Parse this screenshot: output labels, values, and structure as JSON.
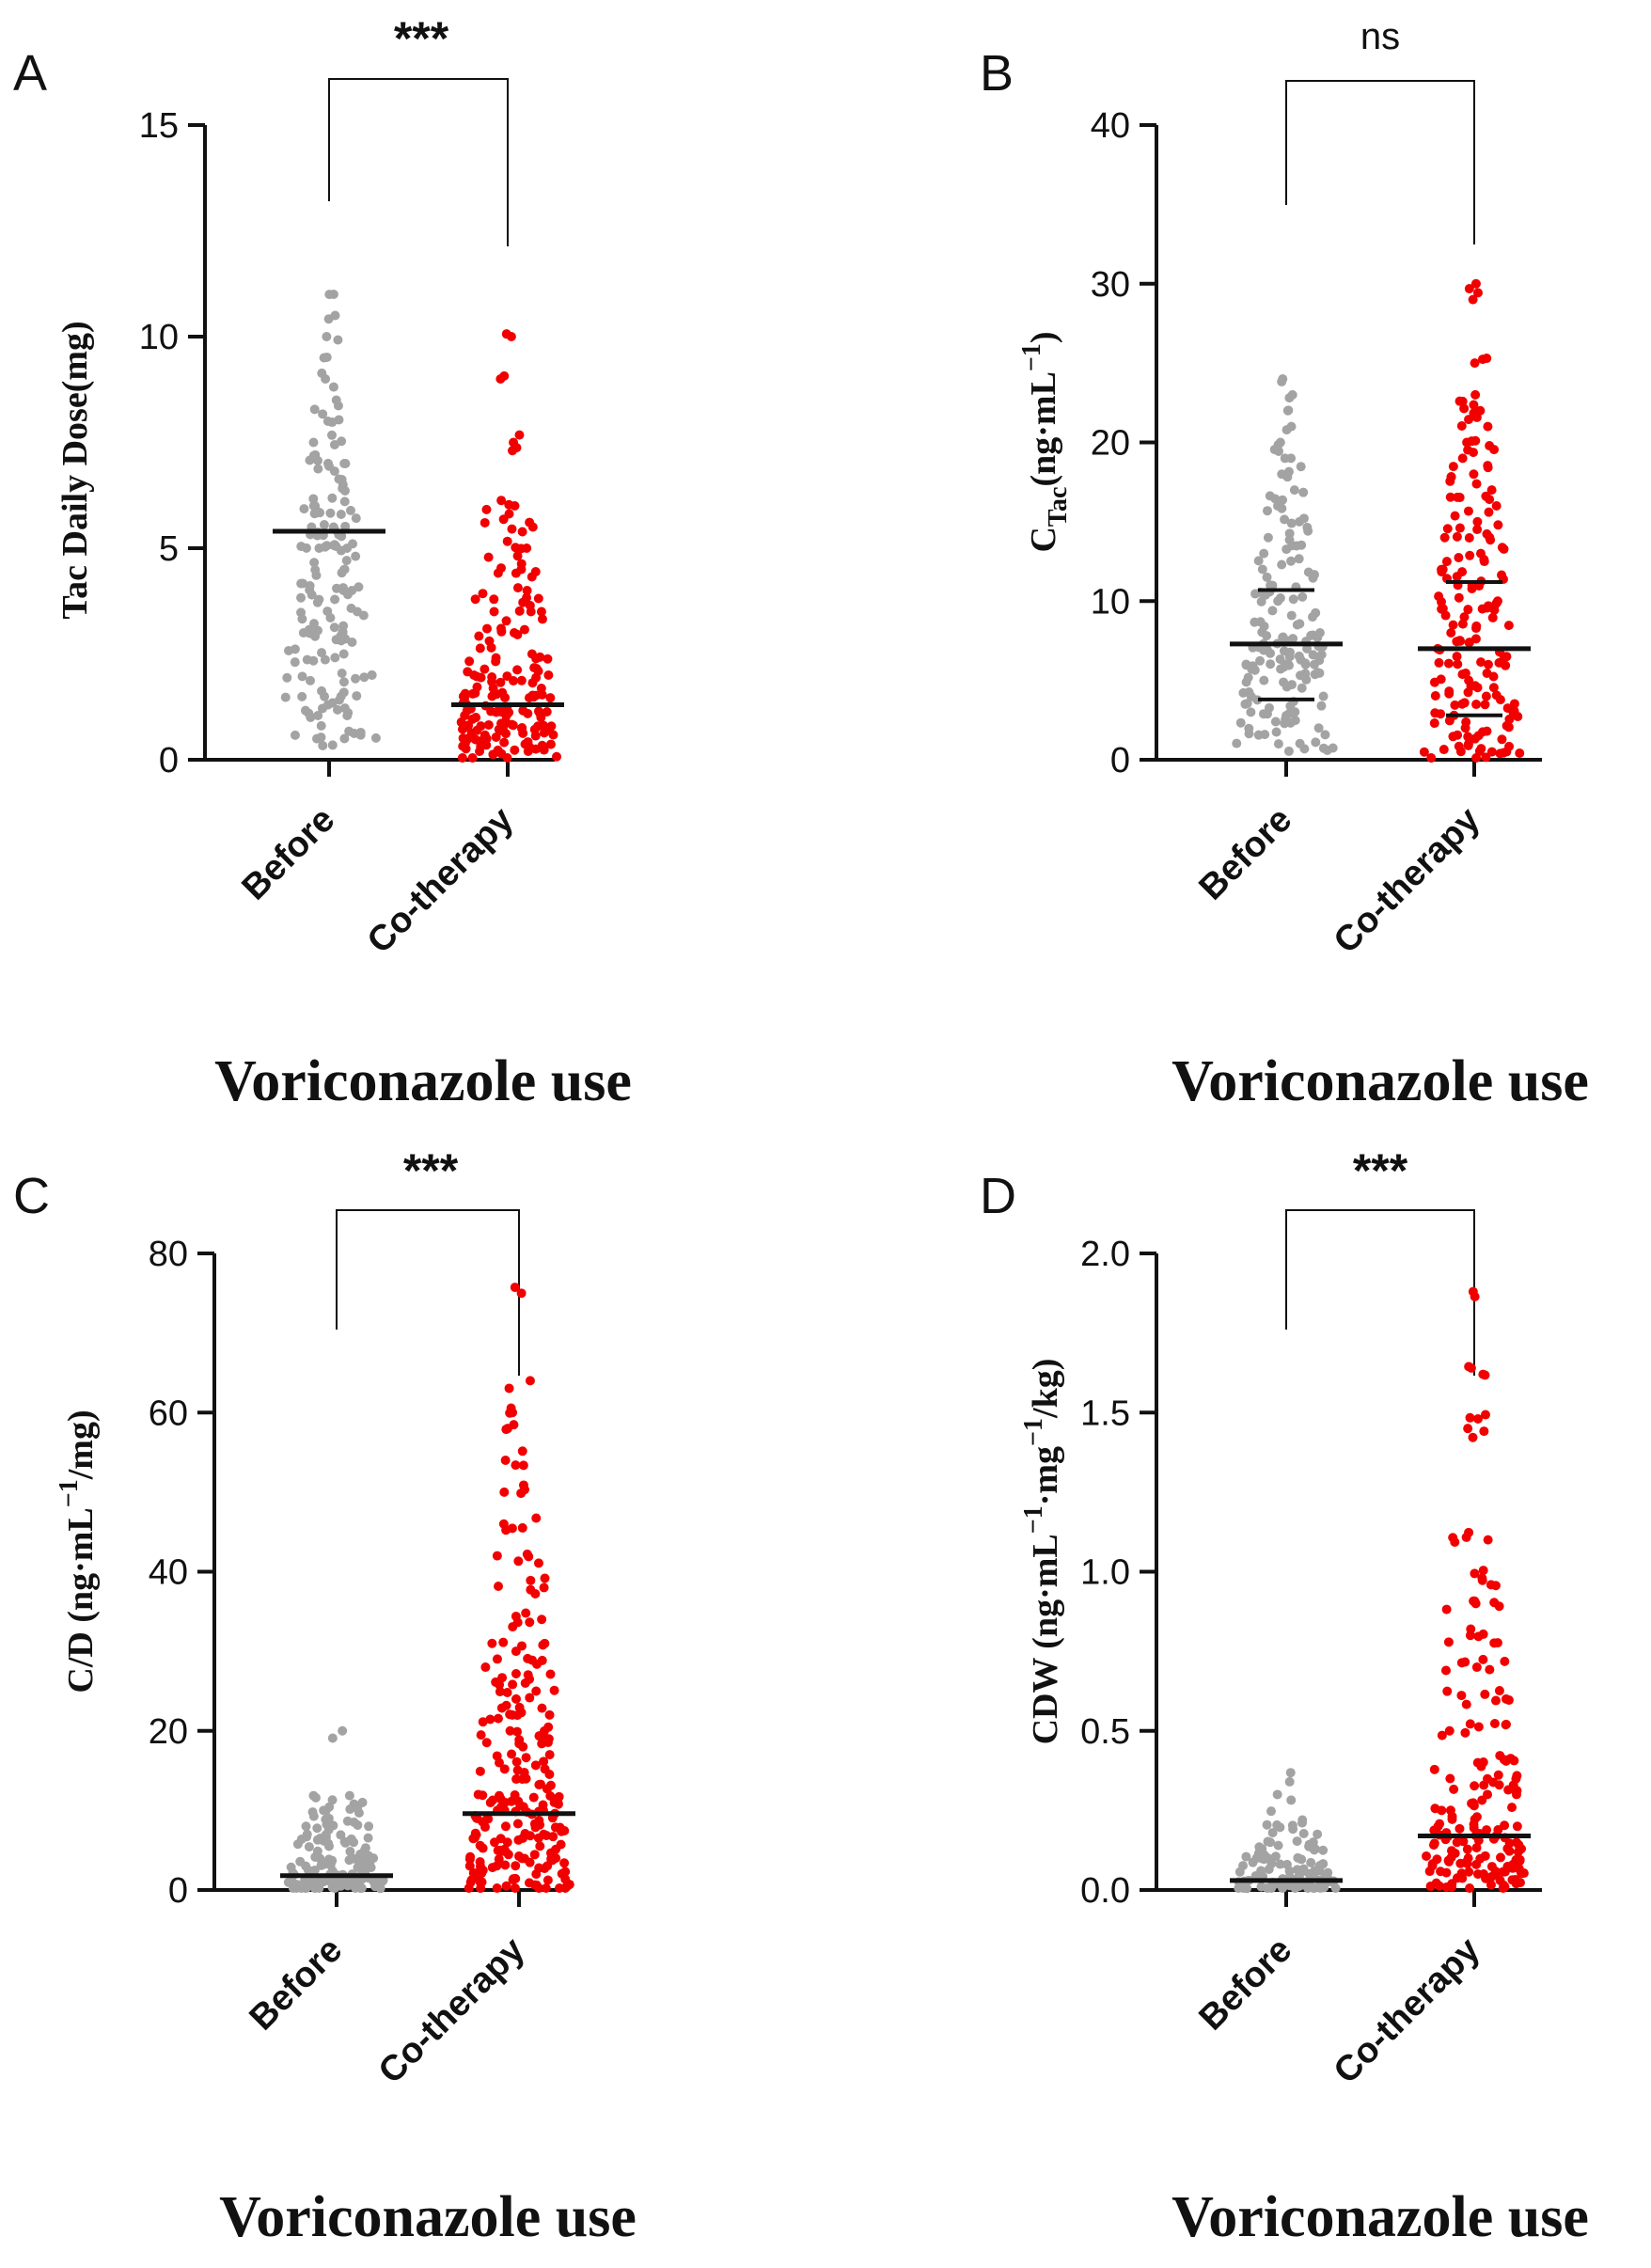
{
  "chart_data": [
    {
      "panel": "A",
      "type": "scatter",
      "categories": [
        "Before",
        "Co-therapy"
      ],
      "ylabel": "Tac Daily Dose(mg)",
      "xlabel": "Voriconazole use",
      "ylim": [
        0,
        15
      ],
      "yticks": [
        0,
        5,
        10,
        15
      ],
      "ytick_labels": [
        "0",
        "5",
        "10",
        "15"
      ],
      "significance": "***",
      "series": [
        {
          "values": [
            0.5,
            1,
            1.5,
            2,
            2.5,
            3,
            3,
            3.5,
            4,
            4,
            4.5,
            5,
            5,
            5.5,
            5.5,
            6,
            6,
            6.5,
            7,
            7,
            7.5,
            8,
            8.5,
            9,
            9.5,
            10,
            10.5,
            11
          ],
          "mean": 5.4
        },
        {
          "values": [
            0.2,
            0.3,
            0.5,
            0.5,
            0.75,
            1,
            1,
            1.25,
            1.5,
            1.5,
            2,
            2,
            2.5,
            3,
            3.5,
            4,
            4.5,
            5,
            5.5,
            6,
            7.5,
            9,
            10
          ],
          "mean": 1.3
        }
      ]
    },
    {
      "panel": "B",
      "type": "scatter",
      "categories": [
        "Before",
        "Co-therapy"
      ],
      "ylabel": "C_Tac (ng·mL⁻¹)",
      "ylabel_main": "C",
      "ylabel_sub": "Tac",
      "ylabel_rest": "(ng·mL",
      "ylabel_sup": "−1",
      "ylabel_close": ")",
      "xlabel": "Voriconazole use",
      "ylim": [
        0,
        40
      ],
      "yticks": [
        0,
        10,
        20,
        30,
        40
      ],
      "ytick_labels": [
        "0",
        "10",
        "20",
        "30",
        "40"
      ],
      "significance": "ns",
      "series": [
        {
          "values": [
            1,
            2,
            3,
            4,
            5,
            5.5,
            6,
            6.5,
            7,
            7.5,
            8,
            9,
            10,
            11,
            12,
            13,
            14,
            15,
            16,
            17,
            18,
            19,
            20,
            21,
            22,
            23,
            24
          ],
          "mean": 7.3,
          "sd_upper": 10.7,
          "sd_lower": 3.8
        },
        {
          "values": [
            0.5,
            1,
            2,
            3,
            4,
            5,
            6,
            7,
            8,
            9,
            10,
            11,
            12,
            13,
            14,
            15,
            16,
            17,
            18,
            19,
            20,
            21,
            22,
            23,
            25,
            29,
            30
          ],
          "mean": 7.0,
          "sd_upper": 11.2,
          "sd_lower": 2.8
        }
      ]
    },
    {
      "panel": "C",
      "type": "scatter",
      "categories": [
        "Before",
        "Co-therapy"
      ],
      "ylabel": "C/D (ng·mL⁻¹/mg)",
      "ylabel_main": "C/D (ng·mL",
      "ylabel_sup": "−1",
      "ylabel_close": "/mg)",
      "xlabel": "Voriconazole use",
      "ylim": [
        0,
        80
      ],
      "yticks": [
        0,
        20,
        40,
        60,
        80
      ],
      "ytick_labels": [
        "0",
        "20",
        "40",
        "60",
        "80"
      ],
      "significance": "***",
      "series": [
        {
          "values": [
            0.2,
            0.5,
            1,
            1.5,
            2,
            2.5,
            3,
            4,
            5,
            6,
            7,
            8,
            9,
            10,
            11,
            20
          ],
          "mean": 1.8
        },
        {
          "values": [
            0.5,
            1,
            2,
            3,
            4,
            5,
            6,
            7,
            8,
            9,
            10,
            11,
            12,
            14,
            16,
            18,
            20,
            22,
            24,
            26,
            28,
            30,
            34,
            38,
            42,
            46,
            50,
            54,
            58,
            60,
            64,
            75
          ],
          "mean": 9.6
        }
      ]
    },
    {
      "panel": "D",
      "type": "scatter",
      "categories": [
        "Before",
        "Co-therapy"
      ],
      "ylabel": "CDW (ng·mL⁻¹·mg⁻¹/kg)",
      "ylabel_main": "CDW (ng·mL",
      "ylabel_sup1": "−1",
      "ylabel_mid": "·mg",
      "ylabel_sup2": "−1",
      "ylabel_close": "/kg)",
      "xlabel": "Voriconazole use",
      "ylim": [
        0,
        2.0
      ],
      "yticks": [
        0,
        0.5,
        1.0,
        1.5,
        2.0
      ],
      "ytick_labels": [
        "0.0",
        "0.5",
        "1.0",
        "1.5",
        "2.0"
      ],
      "significance": "***",
      "series": [
        {
          "values": [
            0.005,
            0.01,
            0.02,
            0.03,
            0.04,
            0.06,
            0.08,
            0.1,
            0.12,
            0.15,
            0.18,
            0.22,
            0.3,
            0.34
          ],
          "mean": 0.03
        },
        {
          "values": [
            0.01,
            0.03,
            0.05,
            0.08,
            0.1,
            0.12,
            0.15,
            0.18,
            0.2,
            0.25,
            0.3,
            0.35,
            0.4,
            0.5,
            0.6,
            0.7,
            0.8,
            0.9,
            0.98,
            1.1,
            1.45,
            1.48,
            1.62,
            1.64,
            1.88
          ],
          "mean": 0.17
        }
      ]
    }
  ],
  "colors": {
    "before": "#a3a3a3",
    "cotherapy": "#f20000",
    "axis": "#111111"
  }
}
